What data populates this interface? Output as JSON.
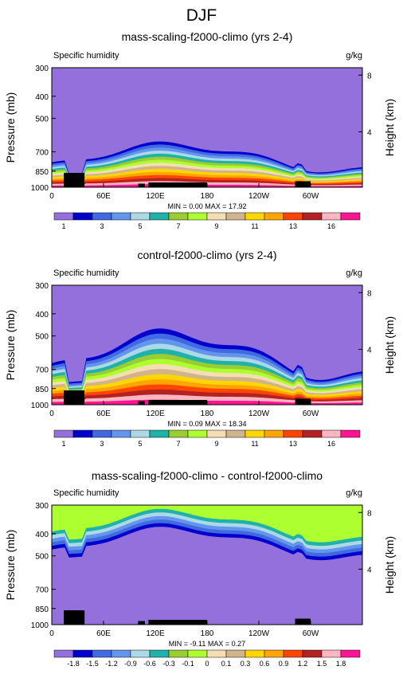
{
  "figure": {
    "title": "DJF"
  },
  "chart_data": [
    {
      "type": "heatmap",
      "title": "mass-scaling-f2000-climo (yrs 2-4)",
      "left_label": "Specific humidity",
      "right_label": "g/kg",
      "ylabel": "Pressure (mb)",
      "ylabel_right": "Height (km)",
      "x_ticks": [
        "0",
        "60E",
        "120E",
        "180",
        "120W",
        "60W"
      ],
      "x_tick_values": [
        0,
        60,
        120,
        180,
        240,
        300
      ],
      "xlim": [
        0,
        360
      ],
      "y_ticks": [
        "300",
        "400",
        "500",
        "700",
        "850",
        "1000"
      ],
      "y_tick_values": [
        300,
        400,
        500,
        700,
        850,
        1000
      ],
      "ylim": [
        300,
        1000
      ],
      "height_ticks": [
        "8",
        "4"
      ],
      "height_tick_values": [
        8,
        4
      ],
      "min_max": "MIN =  0.00   MAX = 17.92",
      "colorbar_labels": [
        "1",
        "3",
        "5",
        "7",
        "9",
        "11",
        "13",
        "16"
      ],
      "colors": [
        "#9370DB",
        "#0000CD",
        "#4169E1",
        "#6495ED",
        "#ADD8E6",
        "#20B2AA",
        "#9ACD32",
        "#ADFF2F",
        "#F5DEB3",
        "#D2B48C",
        "#FFD700",
        "#FFA500",
        "#FF4500",
        "#B22222",
        "#FFB6C1",
        "#FF1493"
      ]
    },
    {
      "type": "heatmap",
      "title": "control-f2000-climo (yrs 2-4)",
      "left_label": "Specific humidity",
      "right_label": "g/kg",
      "ylabel": "Pressure (mb)",
      "ylabel_right": "Height (km)",
      "x_ticks": [
        "0",
        "60E",
        "120E",
        "180",
        "120W",
        "60W"
      ],
      "x_tick_values": [
        0,
        60,
        120,
        180,
        240,
        300
      ],
      "xlim": [
        0,
        360
      ],
      "y_ticks": [
        "300",
        "400",
        "500",
        "700",
        "850",
        "1000"
      ],
      "y_tick_values": [
        300,
        400,
        500,
        700,
        850,
        1000
      ],
      "ylim": [
        300,
        1000
      ],
      "height_ticks": [
        "8",
        "4"
      ],
      "height_tick_values": [
        8,
        4
      ],
      "min_max": "MIN =  0.09   MAX = 18.34",
      "colorbar_labels": [
        "1",
        "3",
        "5",
        "7",
        "9",
        "11",
        "13",
        "16"
      ],
      "colors": [
        "#9370DB",
        "#0000CD",
        "#4169E1",
        "#6495ED",
        "#ADD8E6",
        "#20B2AA",
        "#9ACD32",
        "#ADFF2F",
        "#F5DEB3",
        "#D2B48C",
        "#FFD700",
        "#FFA500",
        "#FF4500",
        "#B22222",
        "#FFB6C1",
        "#FF1493"
      ]
    },
    {
      "type": "heatmap",
      "title": "mass-scaling-f2000-climo - control-f2000-climo",
      "left_label": "Specific humidity",
      "right_label": "g/kg",
      "ylabel": "Pressure (mb)",
      "ylabel_right": "Height (km)",
      "x_ticks": [
        "0",
        "60E",
        "120E",
        "180",
        "120W",
        "60W"
      ],
      "x_tick_values": [
        0,
        60,
        120,
        180,
        240,
        300
      ],
      "xlim": [
        0,
        360
      ],
      "y_ticks": [
        "300",
        "400",
        "500",
        "700",
        "850",
        "1000"
      ],
      "y_tick_values": [
        300,
        400,
        500,
        700,
        850,
        1000
      ],
      "ylim": [
        300,
        1000
      ],
      "height_ticks": [
        "8",
        "4"
      ],
      "height_tick_values": [
        8,
        4
      ],
      "min_max": "MIN = -9.11   MAX =  0.27",
      "colorbar_labels": [
        "-1.8",
        "-1.5",
        "-1.2",
        "-0.9",
        "-0.6",
        "-0.3",
        "-0.1",
        "0",
        "0.1",
        "0.3",
        "0.6",
        "0.9",
        "1.2",
        "1.5",
        "1.8"
      ],
      "colors": [
        "#9370DB",
        "#0000CD",
        "#4169E1",
        "#6495ED",
        "#ADD8E6",
        "#20B2AA",
        "#9ACD32",
        "#ADFF2F",
        "#F5DEB3",
        "#D2B48C",
        "#FFD700",
        "#FFA500",
        "#FF4500",
        "#B22222",
        "#FFB6C1",
        "#FF1493"
      ]
    }
  ]
}
